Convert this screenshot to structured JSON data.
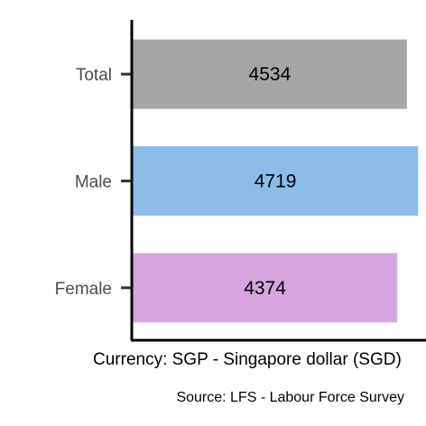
{
  "chart_data": {
    "type": "bar",
    "orientation": "horizontal",
    "categories": [
      "Total",
      "Male",
      "Female"
    ],
    "values": [
      4534,
      4719,
      4374
    ],
    "bar_colors": [
      "#a6a6a6",
      "#8bbde8",
      "#d5a6e0"
    ],
    "xlabel": "Currency: SGP - Singapore dollar (SGD)",
    "ylabel": "",
    "caption": "Source:  LFS - Labour Force Survey",
    "xlim": [
      0,
      4850
    ],
    "grid": false,
    "legend": "none"
  }
}
